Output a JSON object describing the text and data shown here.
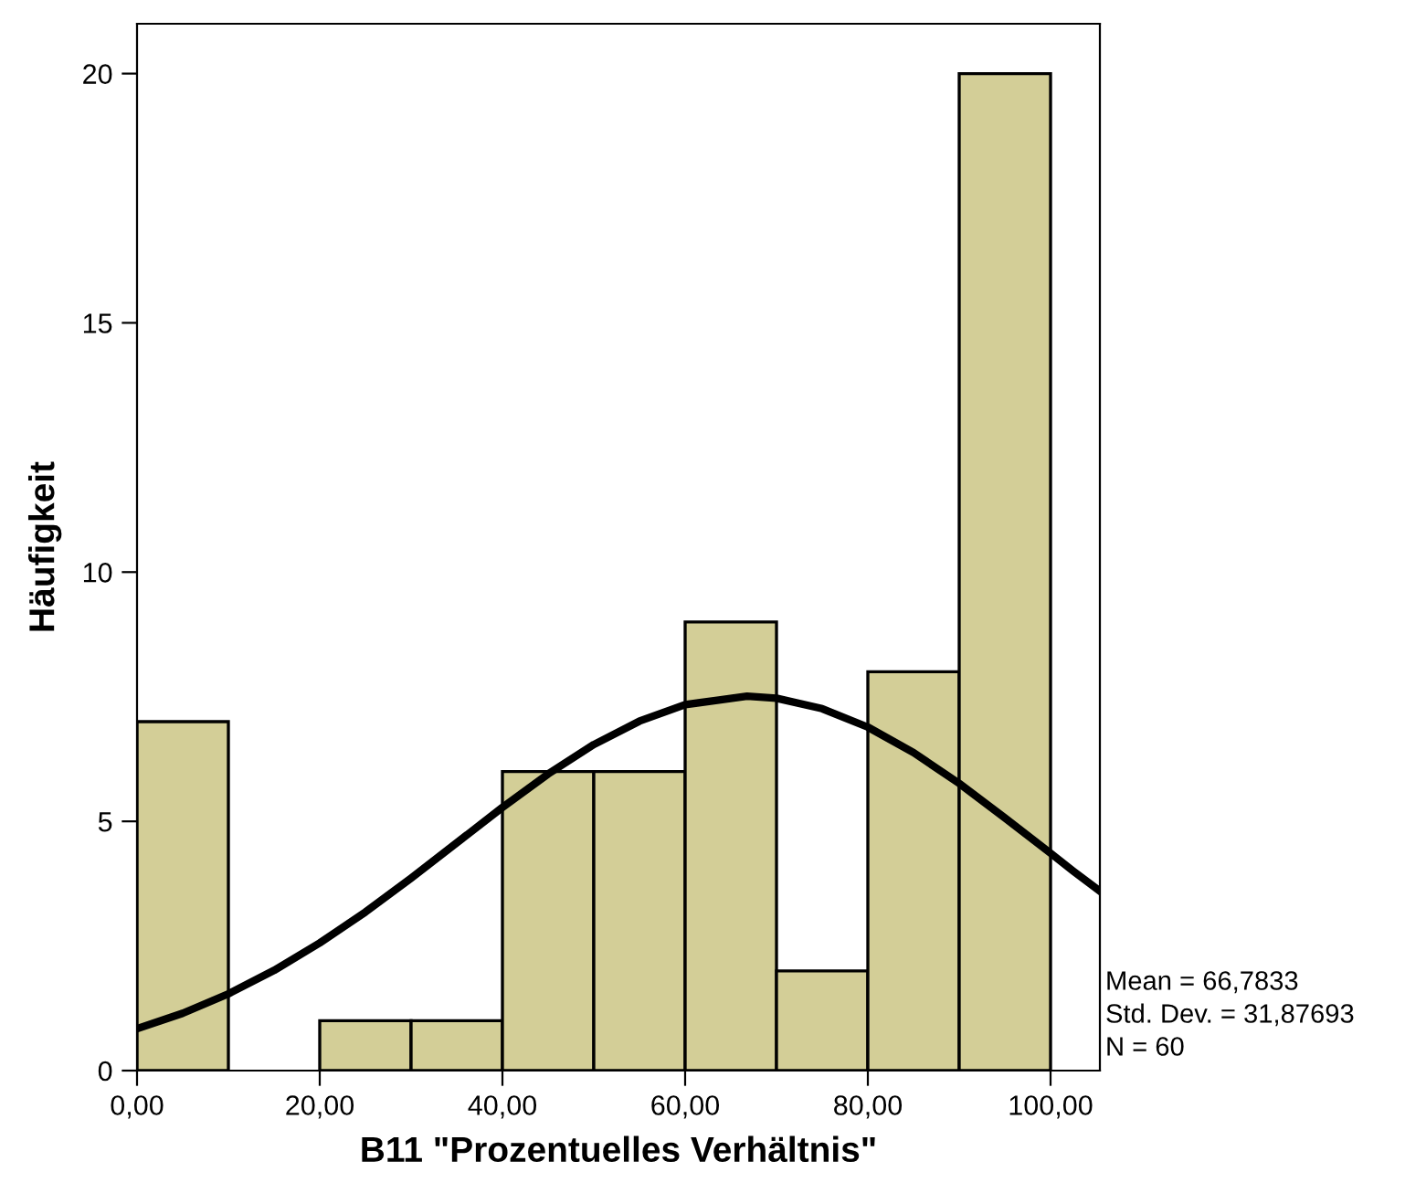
{
  "chart_data": {
    "type": "histogram",
    "xlabel": "B11 \"Prozentuelles Verhältnis\"",
    "ylabel": "Häufigkeit",
    "bins": [
      0,
      10,
      20,
      30,
      40,
      50,
      60,
      70,
      80,
      90,
      100
    ],
    "series": [
      {
        "color": "#d3ce97",
        "values": [
          7,
          0,
          1,
          1,
          6,
          6,
          9,
          2,
          8,
          20
        ]
      },
      {
        "type": "line",
        "color": "#000000",
        "x": [
          0,
          5,
          10,
          15,
          20,
          25,
          30,
          35,
          40,
          45,
          50,
          55,
          60,
          66.78,
          70,
          75,
          80,
          85,
          90,
          95,
          100,
          102.5,
          105.4
        ],
        "values": [
          0.84,
          1.15,
          1.54,
          2.01,
          2.56,
          3.18,
          3.86,
          4.57,
          5.28,
          5.95,
          6.54,
          7.01,
          7.34,
          7.51,
          7.47,
          7.26,
          6.89,
          6.38,
          5.76,
          5.07,
          4.36,
          4.0,
          3.6
        ]
      }
    ],
    "xlim": [
      0,
      105.4
    ],
    "ylim": [
      0,
      21
    ],
    "xticks": [
      {
        "value": 0,
        "label": "0,00"
      },
      {
        "value": 20,
        "label": "20,00"
      },
      {
        "value": 40,
        "label": "40,00"
      },
      {
        "value": 60,
        "label": "60,00"
      },
      {
        "value": 80,
        "label": "80,00"
      },
      {
        "value": 100,
        "label": "100,00"
      }
    ],
    "yticks": [
      0,
      5,
      10,
      15,
      20
    ],
    "annotations": [
      "Mean = 66,7833",
      "Std. Dev. = 31,87693",
      "N = 60"
    ],
    "grid": false,
    "legend": false
  }
}
